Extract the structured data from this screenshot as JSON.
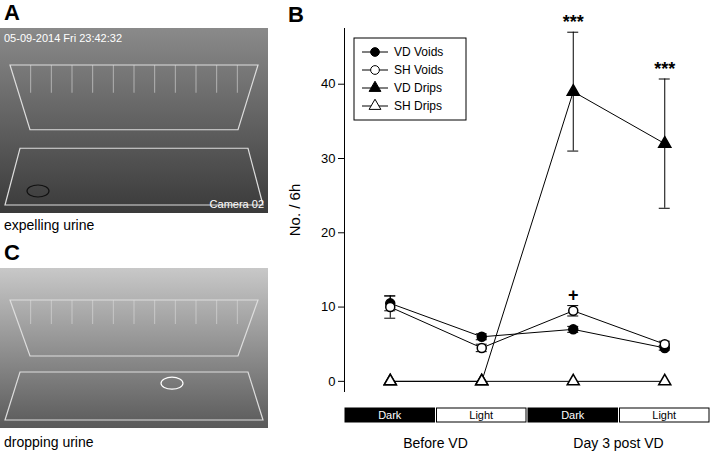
{
  "panels": [
    {
      "label": "A",
      "caption": "expelling urine",
      "overlay": [
        "05-09-2014 Fri 23:42:32",
        "Camera 02"
      ]
    },
    {
      "label": "C",
      "caption": "dropping urine",
      "overlay": []
    }
  ],
  "chart_data": {
    "type": "line",
    "panel_label": "B",
    "y_label": "No. / 6h",
    "categories": [
      "Dark",
      "Light",
      "Dark",
      "Light"
    ],
    "category_colors": [
      "black",
      "white",
      "black",
      "white"
    ],
    "groups": [
      {
        "label": "Before VD",
        "categories": [
          0,
          1
        ]
      },
      {
        "label": "Day 3 post VD",
        "categories": [
          2,
          3
        ]
      }
    ],
    "ylim": [
      -1.5,
      47.5
    ],
    "yticks": [
      0,
      10,
      20,
      30,
      40
    ],
    "legend": "top-left",
    "tick_labels": "y",
    "series": [
      {
        "name": "VD Voids",
        "color": "black",
        "marker": "circle",
        "values": [
          10.5,
          6,
          7,
          4.5
        ],
        "errors": [
          1,
          0.4,
          0.4,
          0.3
        ]
      },
      {
        "name": "SH Voids",
        "color": "white",
        "marker": "circle",
        "values": [
          10,
          4.5,
          9.5,
          5
        ],
        "errors": [
          1.5,
          0.5,
          0.7,
          0.4
        ]
      },
      {
        "name": "VD Drips",
        "color": "black",
        "marker": "triangle",
        "values": [
          0,
          0,
          39,
          32
        ],
        "errors": [
          0,
          0,
          8,
          8.7
        ]
      },
      {
        "name": "SH Drips",
        "color": "white",
        "marker": "triangle",
        "values": [
          0,
          0,
          0,
          0
        ],
        "errors": [
          0,
          0,
          0,
          0
        ]
      }
    ],
    "annotations": [
      {
        "text": "***",
        "at": 2,
        "series": "VD Drips"
      },
      {
        "text": "***",
        "at": 3,
        "series": "VD Drips"
      },
      {
        "text": "+",
        "at": 2,
        "series": "SH Voids"
      }
    ]
  }
}
